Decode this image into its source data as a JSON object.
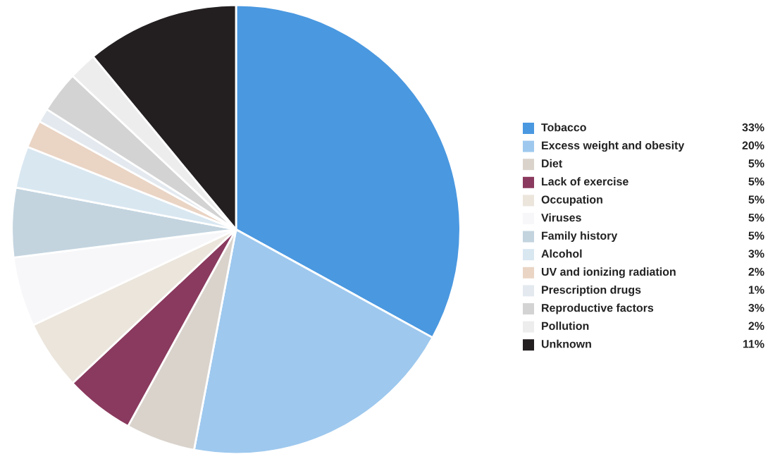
{
  "chart_data": {
    "type": "pie",
    "categories": [
      "Tobacco",
      "Excess weight and obesity",
      "Diet",
      "Lack of exercise",
      "Occupation",
      "Viruses",
      "Family history",
      "Alcohol",
      "UV and ionizing radiation",
      "Prescription drugs",
      "Reproductive factors",
      "Pollution",
      "Unknown"
    ],
    "values": [
      33,
      20,
      5,
      5,
      5,
      5,
      5,
      3,
      2,
      1,
      3,
      2,
      11
    ],
    "value_labels": [
      "33%",
      "20%",
      "5%",
      "5%",
      "5%",
      "5%",
      "5%",
      "3%",
      "2%",
      "1%",
      "3%",
      "2%",
      "11%"
    ],
    "colors": [
      "#4a98e0",
      "#9ec8ee",
      "#d9d3cc",
      "#8a3a5e",
      "#ebe5dc",
      "#f7f7fa",
      "#c3d4df",
      "#d9e7f1",
      "#ead4c4",
      "#e3e9ef",
      "#d3d3d3",
      "#ededed",
      "#231f20"
    ],
    "legend": "right"
  }
}
